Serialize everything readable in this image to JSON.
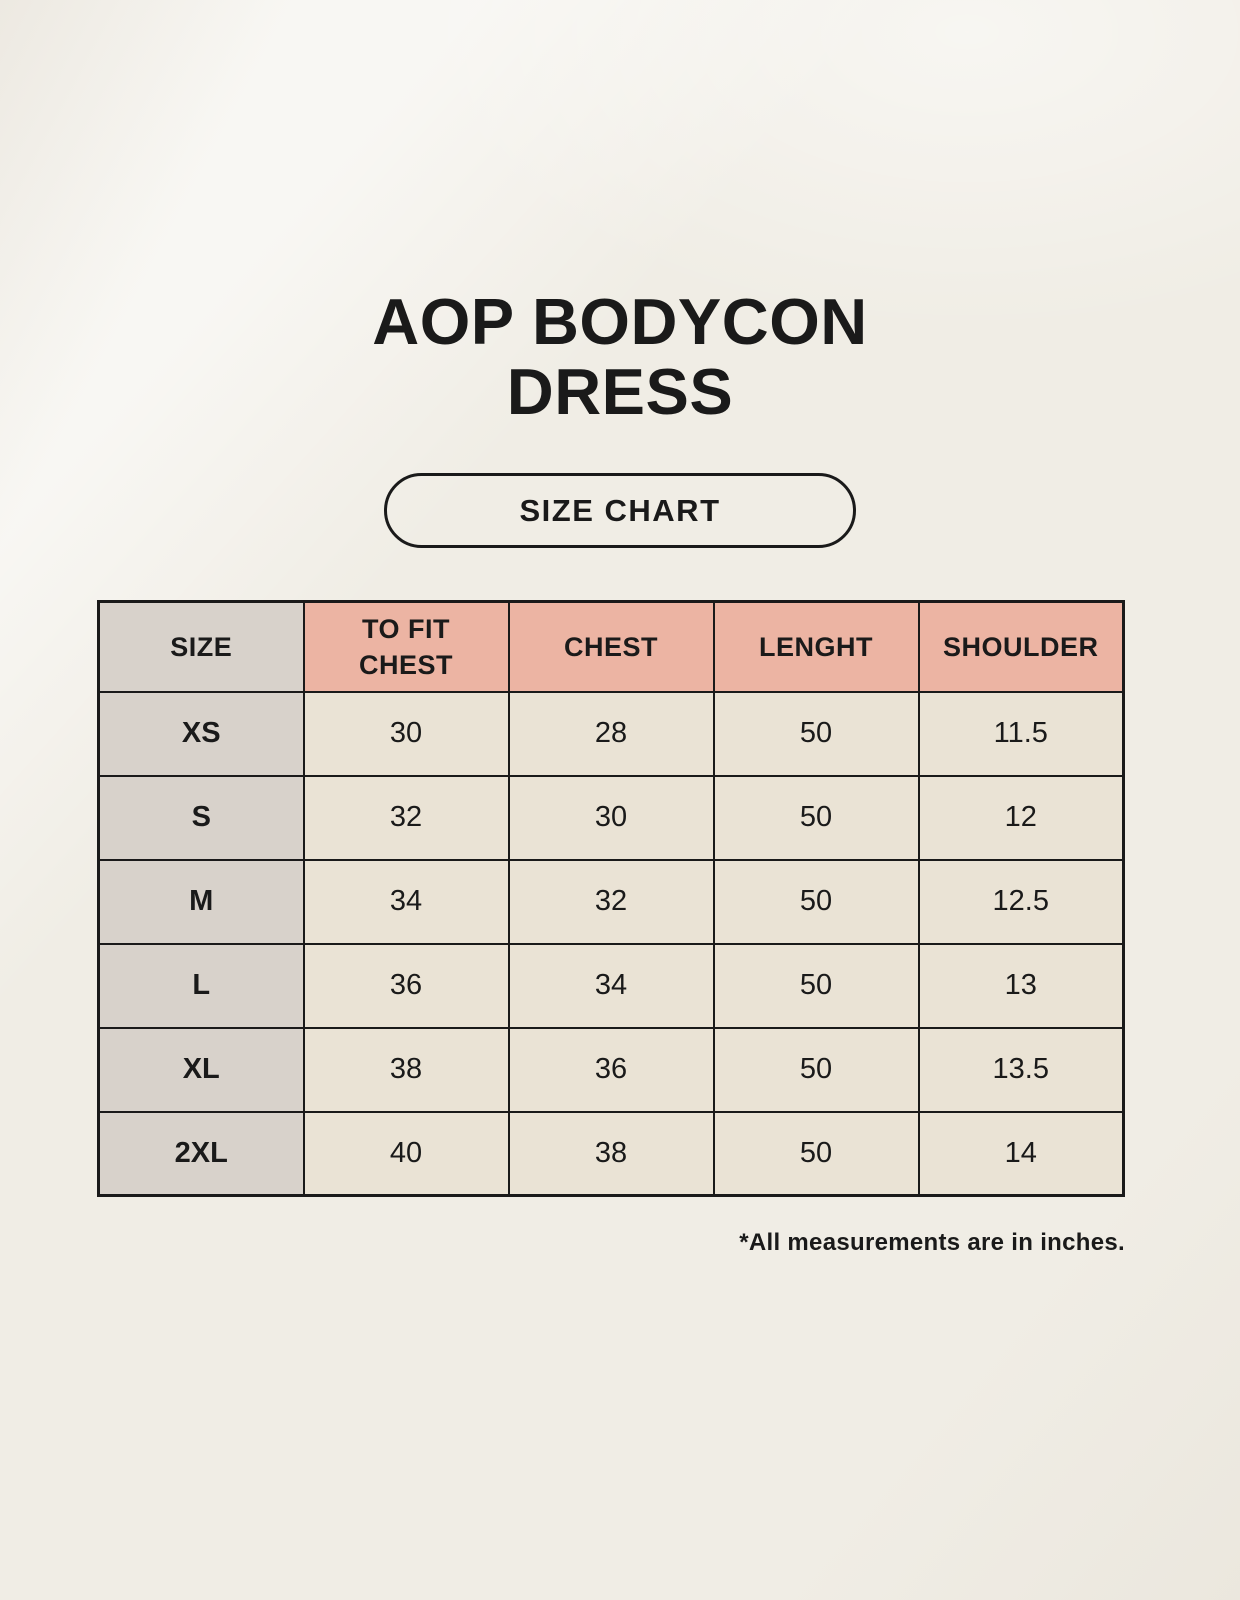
{
  "header": {
    "title_line1": "AOP BODYCON",
    "title_line2": "DRESS",
    "badge_label": "SIZE CHART"
  },
  "chart_data": {
    "type": "table",
    "title": "AOP BODYCON DRESS",
    "subtitle": "SIZE CHART",
    "columns": [
      "SIZE",
      "TO FIT CHEST",
      "CHEST",
      "LENGHT",
      "SHOULDER"
    ],
    "rows": [
      [
        "XS",
        "30",
        "28",
        "50",
        "11.5"
      ],
      [
        "S",
        "32",
        "30",
        "50",
        "12"
      ],
      [
        "M",
        "34",
        "32",
        "50",
        "12.5"
      ],
      [
        "L",
        "36",
        "34",
        "50",
        "13"
      ],
      [
        "XL",
        "38",
        "36",
        "50",
        "13.5"
      ],
      [
        "2XL",
        "40",
        "38",
        "50",
        "14"
      ]
    ],
    "units": "inches"
  },
  "footnote": "*All measurements are in inches.",
  "colors": {
    "background": "#f0ede5",
    "header_pink": "#ecb4a3",
    "size_col_gray": "#d8d2cb",
    "cell_cream": "#eae3d5",
    "border": "#1a1a1a",
    "text": "#1a1a1a"
  }
}
